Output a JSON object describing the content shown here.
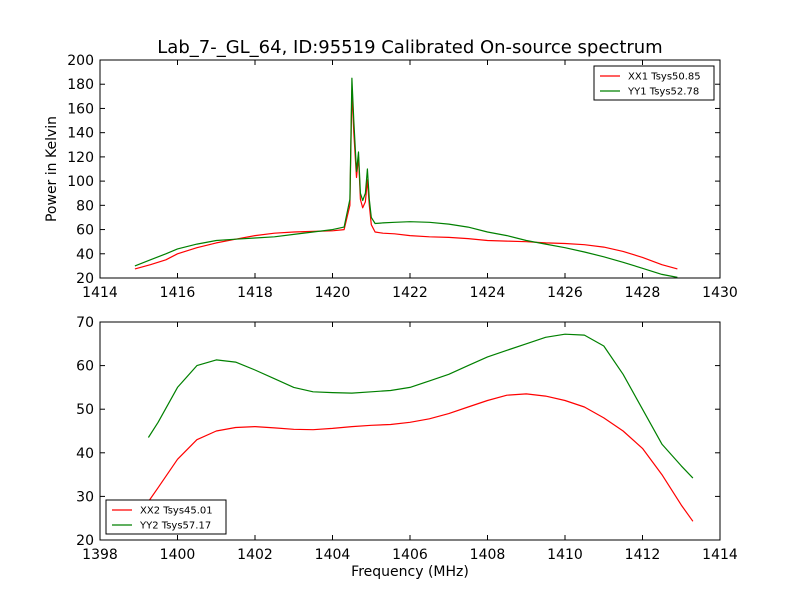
{
  "figure": {
    "title": "Lab_7-_GL_64, ID:95519 Calibrated On-source spectrum"
  },
  "chart_data": [
    {
      "type": "line",
      "title": "Lab_7-_GL_64, ID:95519 Calibrated On-source spectrum",
      "xlabel": "",
      "ylabel": "Power in Kelvin",
      "xlim": [
        1414,
        1430
      ],
      "ylim": [
        20,
        200
      ],
      "xticks": [
        1414,
        1416,
        1418,
        1420,
        1422,
        1424,
        1426,
        1428,
        1430
      ],
      "yticks": [
        20,
        40,
        60,
        80,
        100,
        120,
        140,
        160,
        180,
        200
      ],
      "legend_position": "top-right",
      "grid": false,
      "series": [
        {
          "name": "XX1 Tsys50.85",
          "color": "#ff0000",
          "x": [
            1414.9,
            1415.3,
            1415.7,
            1416.0,
            1416.5,
            1417.0,
            1417.5,
            1418.0,
            1418.5,
            1419.0,
            1419.5,
            1420.0,
            1420.3,
            1420.45,
            1420.5,
            1420.55,
            1420.62,
            1420.67,
            1420.72,
            1420.78,
            1420.85,
            1420.9,
            1420.95,
            1421.0,
            1421.1,
            1421.3,
            1421.6,
            1422.0,
            1422.5,
            1423.0,
            1423.5,
            1424.0,
            1424.5,
            1425.0,
            1425.5,
            1426.0,
            1426.5,
            1427.0,
            1427.5,
            1428.0,
            1428.5,
            1428.9
          ],
          "y": [
            27.5,
            31,
            35,
            40,
            45,
            49,
            52,
            55,
            57,
            58,
            58.5,
            59,
            60,
            80,
            175,
            140,
            103,
            120,
            85,
            78,
            83,
            101,
            80,
            64,
            58,
            57,
            56.5,
            55,
            54,
            53.5,
            52.5,
            51,
            50.5,
            50,
            49,
            48.5,
            47.5,
            45.5,
            42,
            37,
            31,
            27.5
          ]
        },
        {
          "name": "YY1 Tsys52.78",
          "color": "#008000",
          "x": [
            1414.9,
            1415.3,
            1415.7,
            1416.0,
            1416.5,
            1417.0,
            1417.5,
            1418.0,
            1418.5,
            1419.0,
            1419.5,
            1420.0,
            1420.3,
            1420.45,
            1420.5,
            1420.55,
            1420.62,
            1420.67,
            1420.72,
            1420.78,
            1420.85,
            1420.9,
            1420.95,
            1421.0,
            1421.1,
            1421.3,
            1421.6,
            1422.0,
            1422.5,
            1423.0,
            1423.5,
            1424.0,
            1424.5,
            1425.0,
            1425.5,
            1426.0,
            1426.5,
            1427.0,
            1427.5,
            1428.0,
            1428.5,
            1428.9
          ],
          "y": [
            30,
            35,
            40,
            44,
            48,
            51,
            52,
            53,
            54,
            56,
            58,
            60,
            62,
            85,
            185,
            150,
            108,
            124,
            90,
            84,
            90,
            110,
            85,
            70,
            65,
            65.5,
            66,
            66.5,
            66,
            64.5,
            62,
            58,
            55,
            51,
            48,
            45,
            41.5,
            37.5,
            33,
            28,
            23,
            20.5
          ]
        }
      ]
    },
    {
      "type": "line",
      "title": "",
      "xlabel": "Frequency (MHz)",
      "ylabel": "",
      "xlim": [
        1398,
        1414
      ],
      "ylim": [
        20,
        70
      ],
      "xticks": [
        1398,
        1400,
        1402,
        1404,
        1406,
        1408,
        1410,
        1412,
        1414
      ],
      "yticks": [
        20,
        30,
        40,
        50,
        60,
        70
      ],
      "legend_position": "bottom-left",
      "grid": false,
      "series": [
        {
          "name": "XX2 Tsys45.01",
          "color": "#ff0000",
          "x": [
            1399.25,
            1399.5,
            1400.0,
            1400.5,
            1401.0,
            1401.5,
            1402.0,
            1402.5,
            1403.0,
            1403.5,
            1404.0,
            1404.5,
            1405.0,
            1405.5,
            1406.0,
            1406.5,
            1407.0,
            1407.5,
            1408.0,
            1408.5,
            1409.0,
            1409.5,
            1410.0,
            1410.5,
            1411.0,
            1411.5,
            1412.0,
            1412.5,
            1413.0,
            1413.3
          ],
          "y": [
            28.8,
            32,
            38.5,
            43,
            45,
            45.8,
            46,
            45.7,
            45.4,
            45.3,
            45.6,
            46,
            46.3,
            46.5,
            47,
            47.8,
            49,
            50.5,
            52,
            53.2,
            53.5,
            53,
            52,
            50.5,
            48,
            45,
            41,
            35,
            28,
            24.3
          ]
        },
        {
          "name": "YY2 Tsys57.17",
          "color": "#008000",
          "x": [
            1399.25,
            1399.5,
            1400.0,
            1400.5,
            1401.0,
            1401.5,
            1402.0,
            1402.5,
            1403.0,
            1403.5,
            1404.0,
            1404.5,
            1405.0,
            1405.5,
            1406.0,
            1406.5,
            1407.0,
            1407.5,
            1408.0,
            1408.5,
            1409.0,
            1409.5,
            1410.0,
            1410.5,
            1411.0,
            1411.5,
            1412.0,
            1412.5,
            1413.0,
            1413.3
          ],
          "y": [
            43.5,
            47,
            55,
            60,
            61.3,
            60.8,
            59,
            57,
            55,
            54,
            53.8,
            53.7,
            54,
            54.3,
            55,
            56.5,
            58,
            60,
            62,
            63.5,
            65,
            66.5,
            67.2,
            67,
            64.5,
            58,
            50,
            42,
            37,
            34.2
          ]
        }
      ]
    }
  ]
}
